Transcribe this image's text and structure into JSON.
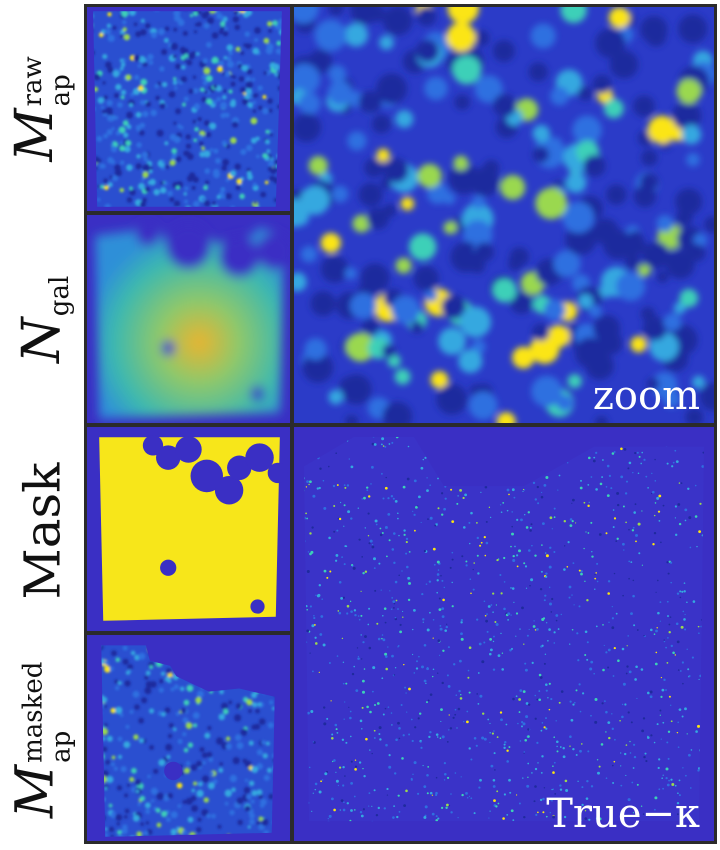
{
  "row_labels": {
    "raw": {
      "letter": "M",
      "sup": "raw",
      "sub": "ap"
    },
    "ngal": {
      "letter": "N",
      "sub": "gal"
    },
    "mask": {
      "word": "Mask"
    },
    "masked": {
      "letter": "M",
      "sup": "masked",
      "sub": "ap"
    }
  },
  "panels": {
    "zoom_label": "zoom",
    "truth_label_text": "True",
    "truth_label_symbol": "−κ"
  },
  "colors": {
    "background": "#3a2fc4",
    "low": "#2a2ab0",
    "mid": "#2f8fe0",
    "high": "#39d3b0",
    "peak": "#fbe512",
    "mask_true": "#f7e61a",
    "frame": "#2b2b2b"
  }
}
